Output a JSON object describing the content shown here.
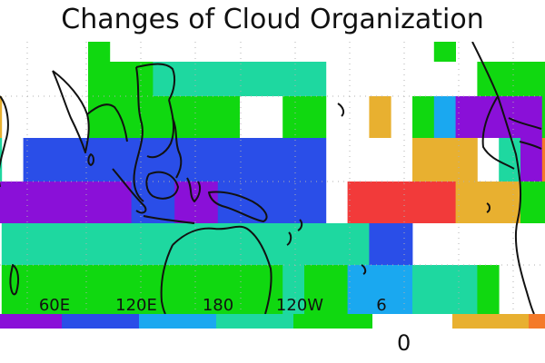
{
  "title": "Changes of Cloud Organization",
  "map": {
    "projection": "equirectangular",
    "lon_range_east": [
      30,
      290
    ],
    "lat_range": [
      -30,
      30
    ],
    "cell_size_deg": [
      10,
      10
    ],
    "grid_lines": "dotted",
    "x_tick_labels": [
      {
        "lon": 60,
        "label": "60E"
      },
      {
        "lon": 120,
        "label": "120E"
      },
      {
        "lon": 180,
        "label": "180"
      },
      {
        "lon": 240,
        "label": "120W"
      },
      {
        "lon": 300,
        "label": "6"
      }
    ],
    "palette": {
      "0": "#ffffff",
      "1": "#8a10d8",
      "2": "#2a4ee8",
      "3": "#1aa8f0",
      "4": "#1ed8a0",
      "5": "#10d810",
      "6": "#e8b030",
      "7": "#f47a2a",
      "8": "#f23a3a"
    },
    "rows": [
      {
        "lat_north": 30,
        "cells": [
          0,
          0,
          0,
          0,
          0,
          5,
          0,
          0,
          0,
          0,
          0,
          0,
          0,
          0,
          0,
          0,
          0,
          0,
          0,
          0,
          0,
          5,
          0,
          0,
          0,
          0,
          0
        ]
      },
      {
        "lat_north": 25,
        "cells": [
          0,
          0,
          0,
          0,
          0,
          5,
          5,
          5,
          4,
          4,
          4,
          4,
          4,
          4,
          4,
          4,
          0,
          0,
          0,
          0,
          0,
          0,
          0,
          5,
          5,
          5,
          5
        ]
      },
      {
        "lat_north": 20,
        "cells": [
          6,
          0,
          0,
          0,
          0,
          5,
          5,
          5,
          5,
          5,
          5,
          5,
          0,
          0,
          5,
          5,
          0,
          0,
          6,
          0,
          5,
          3,
          1,
          1,
          1,
          1,
          5
        ]
      },
      {
        "lat_north": 10,
        "cells": [
          4,
          0,
          2,
          2,
          2,
          2,
          2,
          2,
          2,
          2,
          2,
          2,
          2,
          2,
          2,
          2,
          0,
          0,
          0,
          0,
          6,
          6,
          6,
          0,
          4,
          1,
          7
        ]
      },
      {
        "lat_north": 0,
        "cells": [
          1,
          1,
          1,
          1,
          1,
          1,
          1,
          2,
          2,
          1,
          1,
          2,
          2,
          2,
          2,
          2,
          0,
          8,
          8,
          8,
          8,
          8,
          6,
          6,
          6,
          5,
          5
        ]
      },
      {
        "lat_north": -10,
        "cells": [
          0,
          4,
          4,
          4,
          4,
          4,
          4,
          4,
          4,
          4,
          4,
          4,
          4,
          4,
          4,
          4,
          4,
          4,
          2,
          2,
          0,
          0,
          0,
          0,
          0,
          0,
          0
        ]
      },
      {
        "lat_north": -20,
        "cells": [
          0,
          5,
          5,
          5,
          5,
          5,
          5,
          5,
          5,
          5,
          5,
          5,
          5,
          5,
          4,
          5,
          5,
          3,
          3,
          3,
          4,
          4,
          4,
          5,
          0,
          0,
          0
        ]
      }
    ]
  },
  "colorbar": {
    "segments": [
      {
        "color": "#8a10d8"
      },
      {
        "color": "#2a4ee8"
      },
      {
        "color": "#1aa8f0"
      },
      {
        "color": "#1ed8a0"
      },
      {
        "color": "#10d810"
      },
      {
        "color": "#ffffff"
      },
      {
        "color": "#e8b030"
      },
      {
        "color": "#f47a2a"
      }
    ],
    "zero_label": "0"
  }
}
